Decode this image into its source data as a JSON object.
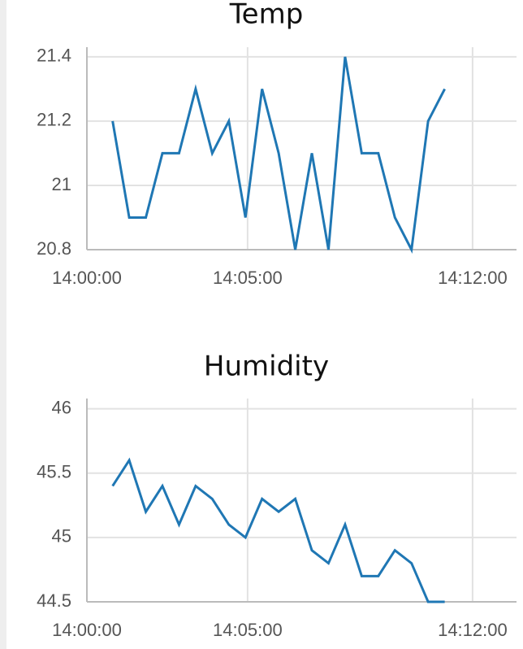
{
  "chart_data": [
    {
      "type": "line",
      "title": "Temp",
      "x": [
        "14:00:48",
        "14:01:19",
        "14:01:50",
        "14:02:21",
        "14:02:52",
        "14:03:23",
        "14:03:54",
        "14:04:25",
        "14:04:56",
        "14:05:27",
        "14:05:58",
        "14:06:29",
        "14:07:00",
        "14:07:31",
        "14:08:02",
        "14:08:33",
        "14:09:04",
        "14:09:35",
        "14:10:06",
        "14:10:37",
        "14:11:08"
      ],
      "series": [
        {
          "color": "#1f77b4",
          "values": [
            21.2,
            20.9,
            20.9,
            21.1,
            21.1,
            21.3,
            21.1,
            21.2,
            20.9,
            21.3,
            21.1,
            20.8,
            21.1,
            20.8,
            21.4,
            21.1,
            21.1,
            20.9,
            20.8,
            21.2,
            21.3
          ]
        }
      ],
      "xlim": [
        "14:00:00",
        "14:13:22"
      ],
      "xticks": [
        "14:00:00",
        "14:05:00",
        "14:12:00"
      ],
      "ylim": [
        20.8,
        21.43
      ],
      "yticks": [
        20.8,
        21,
        21.2,
        21.4
      ],
      "grid": true
    },
    {
      "type": "line",
      "title": "Humidity",
      "x": [
        "14:00:48",
        "14:01:19",
        "14:01:50",
        "14:02:21",
        "14:02:52",
        "14:03:23",
        "14:03:54",
        "14:04:25",
        "14:04:56",
        "14:05:27",
        "14:05:58",
        "14:06:29",
        "14:07:00",
        "14:07:31",
        "14:08:02",
        "14:08:33",
        "14:09:04",
        "14:09:35",
        "14:10:06",
        "14:10:37",
        "14:11:08"
      ],
      "series": [
        {
          "color": "#1f77b4",
          "values": [
            45.4,
            45.6,
            45.2,
            45.4,
            45.1,
            45.4,
            45.3,
            45.1,
            45.0,
            45.3,
            45.2,
            45.3,
            44.9,
            44.8,
            45.1,
            44.7,
            44.7,
            44.9,
            44.8,
            44.5,
            44.5
          ]
        }
      ],
      "xlim": [
        "14:00:00",
        "14:13:22"
      ],
      "xticks": [
        "14:00:00",
        "14:05:00",
        "14:12:00"
      ],
      "ylim": [
        44.5,
        46.08
      ],
      "yticks": [
        44.5,
        45,
        45.5,
        46
      ],
      "grid": true
    }
  ]
}
